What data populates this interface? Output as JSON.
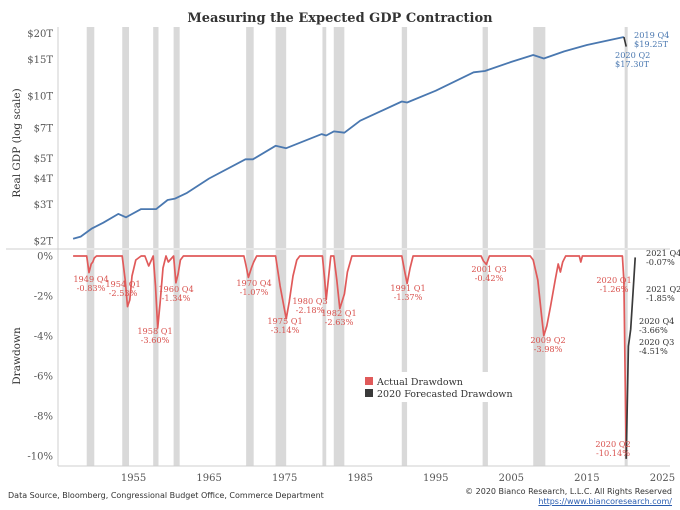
{
  "chart_data": [
    {
      "type": "line",
      "title": "Measuring the Expected GDP Contraction",
      "ylabel": "Real GDP (log scale)",
      "yscale": "log",
      "ylim": [
        1.85,
        21.5
      ],
      "xlim": [
        1945,
        2026
      ],
      "yticks": [
        2,
        3,
        4,
        5,
        7,
        10,
        15,
        20
      ],
      "ytick_labels": [
        "$2T",
        "$3T",
        "$4T",
        "$5T",
        "$7T",
        "$10T",
        "$15T",
        "$20T"
      ],
      "series": [
        {
          "color": "#4a78b0",
          "x": [
            1947.0,
            1948.0,
            1949.5,
            1951.0,
            1953.0,
            1954.0,
            1956.0,
            1958.0,
            1959.5,
            1960.5,
            1962.0,
            1965.0,
            1969.8,
            1970.8,
            1973.8,
            1975.2,
            1979.9,
            1980.5,
            1981.5,
            1982.9,
            1985.0,
            1990.5,
            1991.2,
            1995.0,
            2000.0,
            2001.5,
            2005.0,
            2007.9,
            2009.3,
            2012.0,
            2015.0,
            2019.9
          ],
          "y": [
            2.05,
            2.1,
            2.3,
            2.45,
            2.7,
            2.6,
            2.85,
            2.85,
            3.15,
            3.2,
            3.4,
            4.0,
            4.95,
            4.95,
            5.75,
            5.6,
            6.55,
            6.45,
            6.75,
            6.65,
            7.6,
            9.4,
            9.3,
            10.6,
            13.0,
            13.2,
            14.6,
            15.75,
            15.15,
            16.4,
            17.6,
            19.25
          ]
        },
        {
          "color": "#333333",
          "x": [
            2019.9,
            2020.2
          ],
          "y": [
            19.25,
            17.3
          ]
        }
      ],
      "annotations": [
        {
          "line1": "2019 Q4",
          "line2": "$19.25T"
        },
        {
          "line1": "2020 Q2",
          "line2": "$17.30T"
        }
      ],
      "shaded_recessions": [
        [
          1948.8,
          1949.8
        ],
        [
          1953.5,
          1954.4
        ],
        [
          1957.6,
          1958.3
        ],
        [
          1960.3,
          1961.1
        ],
        [
          1969.9,
          1970.9
        ],
        [
          1973.8,
          1975.2
        ],
        [
          1980.0,
          1980.5
        ],
        [
          1981.5,
          1982.9
        ],
        [
          1990.5,
          1991.2
        ],
        [
          2001.2,
          2001.9
        ],
        [
          2007.9,
          2009.5
        ],
        [
          2020.0,
          2020.4
        ]
      ]
    },
    {
      "type": "line",
      "ylabel": "Drawdown",
      "ylim": [
        -10.5,
        0.3
      ],
      "xlim": [
        1945,
        2026
      ],
      "yticks": [
        0,
        -2,
        -4,
        -6,
        -8,
        -10
      ],
      "ytick_labels": [
        "0%",
        "-2%",
        "-4%",
        "-6%",
        "-8%",
        "-10%"
      ],
      "xticks": [
        1955,
        1965,
        1975,
        1985,
        1995,
        2005,
        2015,
        2025
      ],
      "xtick_labels": [
        "1955",
        "1965",
        "1975",
        "1985",
        "1995",
        "2005",
        "2015",
        "2025"
      ],
      "series": [
        {
          "name": "Actual Drawdown",
          "color": "#e05a5a",
          "x": [
            1947.0,
            1948.8,
            1949.1,
            1949.4,
            1949.6,
            1949.8,
            1950.1,
            1953.5,
            1953.9,
            1954.2,
            1954.5,
            1954.8,
            1955.3,
            1956.0,
            1956.5,
            1957.0,
            1957.6,
            1957.9,
            1958.2,
            1958.5,
            1958.9,
            1959.3,
            1959.6,
            1960.3,
            1960.6,
            1960.9,
            1961.2,
            1961.6,
            1968.0,
            1969.6,
            1969.9,
            1970.2,
            1970.6,
            1970.9,
            1971.3,
            1973.8,
            1974.4,
            1975.2,
            1975.6,
            1976.1,
            1976.6,
            1977.0,
            1980.0,
            1980.3,
            1980.5,
            1980.8,
            1981.1,
            1981.5,
            1981.9,
            1982.3,
            1982.9,
            1983.3,
            1983.9,
            1990.5,
            1990.9,
            1991.2,
            1991.6,
            1992.0,
            2001.0,
            2001.3,
            2001.7,
            2002.1,
            2007.5,
            2007.9,
            2008.5,
            2009.0,
            2009.3,
            2009.7,
            2010.2,
            2010.8,
            2011.2,
            2011.5,
            2011.8,
            2012.2,
            2014.0,
            2014.2,
            2014.4,
            2019.7,
            2019.9,
            2020.2
          ],
          "y": [
            0.0,
            0.0,
            -0.83,
            -0.4,
            -0.3,
            -0.1,
            0.0,
            0.0,
            -1.2,
            -2.53,
            -2.2,
            -1.0,
            -0.2,
            0.0,
            0.0,
            -0.5,
            0.0,
            -1.5,
            -3.6,
            -2.4,
            -0.6,
            0.0,
            -0.3,
            0.0,
            -1.34,
            -0.9,
            -0.2,
            0.0,
            0.0,
            0.0,
            -0.5,
            -1.07,
            -0.6,
            -0.3,
            0.0,
            0.0,
            -1.5,
            -3.14,
            -2.3,
            -1.0,
            -0.2,
            0.0,
            0.0,
            -1.2,
            -2.18,
            -1.1,
            0.0,
            0.0,
            -1.2,
            -2.63,
            -1.9,
            -0.8,
            0.0,
            0.0,
            -0.8,
            -1.37,
            -0.6,
            0.0,
            0.0,
            -0.25,
            -0.42,
            0.0,
            0.0,
            -0.2,
            -1.2,
            -3.0,
            -3.98,
            -3.5,
            -2.5,
            -1.2,
            -0.4,
            -0.8,
            -0.3,
            0.0,
            0.0,
            -0.3,
            0.0,
            0.0,
            -1.26,
            -10.14
          ]
        },
        {
          "name": "2020 Forecasted Drawdown",
          "color": "#3a3a3a",
          "x": [
            2020.2,
            2020.5,
            2020.8,
            2021.1,
            2021.4
          ],
          "y": [
            -10.14,
            -4.51,
            -3.66,
            -1.85,
            -0.07
          ]
        }
      ],
      "annotations": [
        {
          "line1": "1949 Q4",
          "line2": "-0.83%",
          "color": "red"
        },
        {
          "line1": "1954 Q1",
          "line2": "-2.53%",
          "color": "red"
        },
        {
          "line1": "1958 Q1",
          "line2": "-3.60%",
          "color": "red"
        },
        {
          "line1": "1960 Q4",
          "line2": "-1.34%",
          "color": "red"
        },
        {
          "line1": "1970 Q4",
          "line2": "-1.07%",
          "color": "red"
        },
        {
          "line1": "1975 Q1",
          "line2": "-3.14%",
          "color": "red"
        },
        {
          "line1": "1980 Q3",
          "line2": "-2.18%",
          "color": "red"
        },
        {
          "line1": "1982 Q1",
          "line2": "-2.63%",
          "color": "red"
        },
        {
          "line1": "1991 Q1",
          "line2": "-1.37%",
          "color": "red"
        },
        {
          "line1": "2001 Q3",
          "line2": "-0.42%",
          "color": "red"
        },
        {
          "line1": "2009 Q2",
          "line2": "-3.98%",
          "color": "red"
        },
        {
          "line1": "2020 Q1",
          "line2": "-1.26%",
          "color": "red"
        },
        {
          "line1": "2020 Q2",
          "line2": "-10.14%",
          "color": "red"
        },
        {
          "line1": "2021 Q4",
          "line2": "-0.07%",
          "color": "dark"
        },
        {
          "line1": "2021 Q2",
          "line2": "-1.85%",
          "color": "dark"
        },
        {
          "line1": "2020 Q4",
          "line2": "-3.66%",
          "color": "dark"
        },
        {
          "line1": "2020 Q3",
          "line2": "-4.51%",
          "color": "dark"
        }
      ],
      "legend": {
        "position": "center",
        "entries": [
          "Actual Drawdown",
          "2020 Forecasted Drawdown"
        ]
      },
      "shaded_recessions": [
        [
          1948.8,
          1949.8
        ],
        [
          1953.5,
          1954.4
        ],
        [
          1957.6,
          1958.3
        ],
        [
          1960.3,
          1961.1
        ],
        [
          1969.9,
          1970.9
        ],
        [
          1973.8,
          1975.2
        ],
        [
          1980.0,
          1980.5
        ],
        [
          1981.5,
          1982.9
        ],
        [
          1990.5,
          1991.2
        ],
        [
          2001.2,
          2001.9
        ],
        [
          2007.9,
          2009.5
        ],
        [
          2020.0,
          2020.4
        ]
      ]
    }
  ],
  "footer": {
    "source": "Data Source, Bloomberg, Congressional Budget Office, Commerce Department",
    "copyright": "© 2020 Bianco Research, L.L.C. All Rights Reserved",
    "url": "https://www.biancoresearch.com/"
  }
}
